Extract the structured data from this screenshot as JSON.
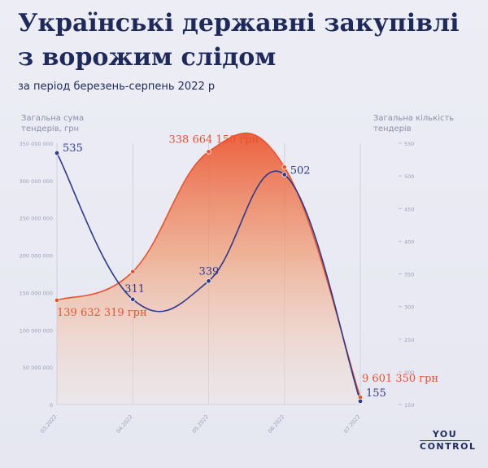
{
  "title": "Українські державні закупівлі з ворожим слідом",
  "subtitle": "за період березень-серпень 2022 р",
  "left_axis_title": "Загальна сума тендерів, грн",
  "right_axis_title": "Загальна кількість тендерів",
  "brand": {
    "line1": "YOU",
    "line2": "CONTROL"
  },
  "colors": {
    "amount": "#e8532e",
    "count": "#2b3a8c",
    "text": "#1f2a5c"
  },
  "chart_data": {
    "type": "line",
    "categories": [
      "03.2022",
      "04.2022",
      "05.2022",
      "06.2022",
      "07.2022"
    ],
    "series": [
      {
        "name": "Загальна сума тендерів, грн",
        "axis": "left",
        "style": "area",
        "values": [
          139632319,
          178000000,
          338664150,
          318000000,
          9601350
        ],
        "labels": [
          "139 632 319 грн",
          "",
          "338 664 150 грн",
          "",
          "9 601 350 грн"
        ]
      },
      {
        "name": "Загальна кількість тендерів",
        "axis": "right",
        "style": "line",
        "values": [
          535,
          311,
          339,
          502,
          155
        ],
        "labels": [
          "535",
          "311",
          "339",
          "502",
          "155"
        ]
      }
    ],
    "y_left": {
      "ylim": [
        0,
        350000000
      ],
      "ticks": [
        0,
        50000000,
        100000000,
        150000000,
        200000000,
        250000000,
        300000000,
        350000000
      ],
      "tick_labels": [
        "0",
        "50 000 000",
        "100 000 000",
        "150 000 000",
        "200 000 000",
        "250 000 000",
        "300 000 000",
        "350 000 000"
      ]
    },
    "y_right": {
      "ylim": [
        150,
        550
      ],
      "ticks": [
        150,
        200,
        250,
        300,
        350,
        400,
        450,
        500,
        550
      ],
      "tick_labels": [
        "150",
        "200",
        "250",
        "300",
        "350",
        "400",
        "450",
        "500",
        "550"
      ]
    },
    "grid": "vertical"
  }
}
